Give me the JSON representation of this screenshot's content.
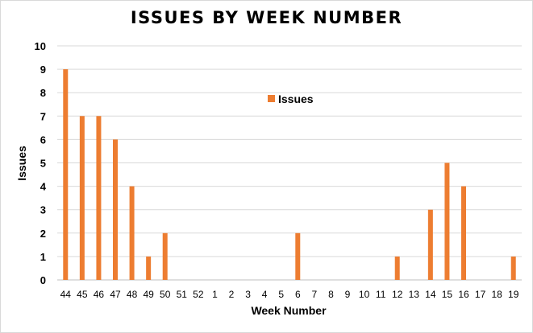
{
  "chart_data": {
    "type": "bar",
    "title": "ISSUES BY WEEK NUMBER",
    "xlabel": "Week Number",
    "ylabel": "Issues",
    "categories": [
      "44",
      "45",
      "46",
      "47",
      "48",
      "49",
      "50",
      "51",
      "52",
      "1",
      "2",
      "3",
      "4",
      "5",
      "6",
      "7",
      "8",
      "9",
      "10",
      "11",
      "12",
      "13",
      "14",
      "15",
      "16",
      "17",
      "18",
      "19"
    ],
    "series": [
      {
        "name": "Issues",
        "values": [
          9,
          7,
          7,
          6,
          4,
          1,
          2,
          0,
          0,
          0,
          0,
          0,
          0,
          0,
          2,
          0,
          0,
          0,
          0,
          0,
          1,
          0,
          3,
          5,
          4,
          0,
          0,
          1
        ]
      }
    ],
    "ylim": [
      0,
      10
    ],
    "yticks": [
      0,
      1,
      2,
      3,
      4,
      5,
      6,
      7,
      8,
      9,
      10
    ],
    "grid": true,
    "legend": "top-center",
    "colors": {
      "bar": "#ED7D31",
      "grid": "#d9d9d9",
      "axis": "#bfbfbf"
    }
  }
}
